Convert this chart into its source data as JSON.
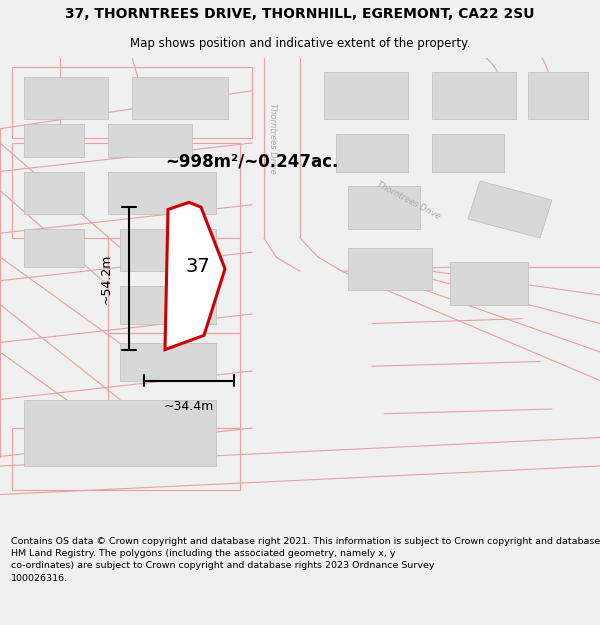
{
  "title_line1": "37, THORNTREES DRIVE, THORNHILL, EGREMONT, CA22 2SU",
  "title_line2": "Map shows position and indicative extent of the property.",
  "area_text": "~998m²/~0.247ac.",
  "dim_height": "~54.2m",
  "dim_width": "~34.4m",
  "number_label": "37",
  "copyright_text": "Contains OS data © Crown copyright and database right 2021. This information is subject to Crown copyright and database rights 2023 and is reproduced with the permission of\nHM Land Registry. The polygons (including the associated geometry, namely x, y\nco-ordinates) are subject to Crown copyright and database rights 2023 Ordnance Survey\n100026316.",
  "bg_color": "#f0f0f0",
  "map_bg": "#ffffff",
  "road_color": "#e8a0a0",
  "building_fill": "#d8d8d8",
  "building_edge": "#bbbbbb",
  "property_fill": "#ffffff",
  "property_edge": "#cc0000",
  "dim_color": "#000000",
  "title_color": "#000000",
  "road_label_color": "#aaaaaa",
  "copyright_color": "#000000",
  "title_fontsize": 10,
  "subtitle_fontsize": 8.5,
  "area_fontsize": 12,
  "dim_fontsize": 9,
  "number_fontsize": 14,
  "road_label_fontsize": 6,
  "copyright_fontsize": 6.8
}
